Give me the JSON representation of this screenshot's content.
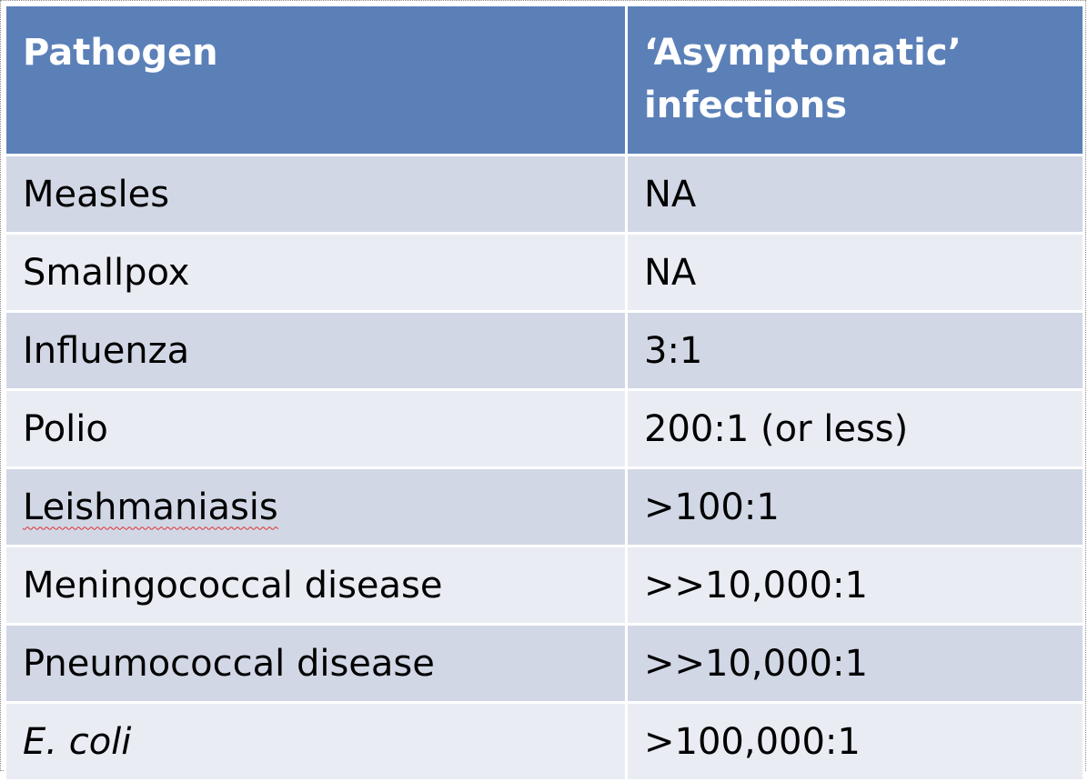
{
  "table": {
    "headers": [
      "Pathogen",
      "‘Asymptomatic’ infections"
    ],
    "rows": [
      {
        "pathogen": "Measles",
        "ratio": "NA"
      },
      {
        "pathogen": "Smallpox",
        "ratio": "NA"
      },
      {
        "pathogen": "Influenza",
        "ratio": "3:1"
      },
      {
        "pathogen": "Polio",
        "ratio": "200:1 (or less)"
      },
      {
        "pathogen": "Leishmaniasis",
        "ratio": ">100:1"
      },
      {
        "pathogen": "Meningococcal disease",
        "ratio": ">>10,000:1"
      },
      {
        "pathogen": "Pneumococcal disease",
        "ratio": ">>10,000:1"
      },
      {
        "pathogen": "E. coli",
        "ratio": ">100,000:1"
      }
    ],
    "colors": {
      "header_bg": "#5b80b8",
      "row_odd_bg": "#d1d7e5",
      "row_even_bg": "#e9ecf3",
      "spellcheck_underline": "#e03030"
    }
  }
}
